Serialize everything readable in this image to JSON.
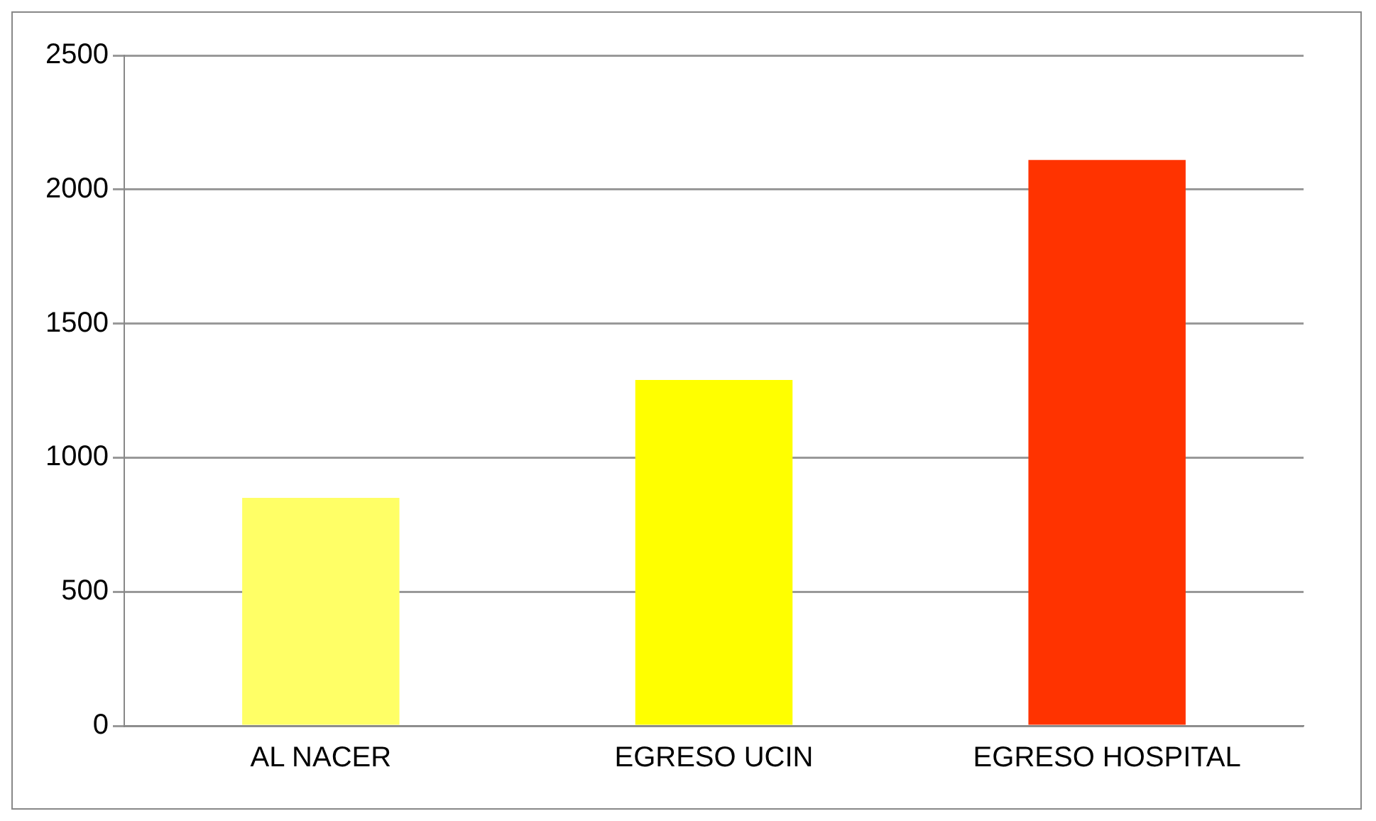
{
  "chart_data": {
    "type": "bar",
    "categories": [
      "AL NACER",
      "EGRESO UCIN",
      "EGRESO HOSPITAL"
    ],
    "values": [
      850,
      1290,
      2110
    ],
    "colors": [
      "#ffff66",
      "#ffff00",
      "#ff3300"
    ],
    "ylim": [
      0,
      2500
    ],
    "yticks": [
      0,
      500,
      1000,
      1500,
      2000,
      2500
    ],
    "grid": "y",
    "legend": false
  }
}
